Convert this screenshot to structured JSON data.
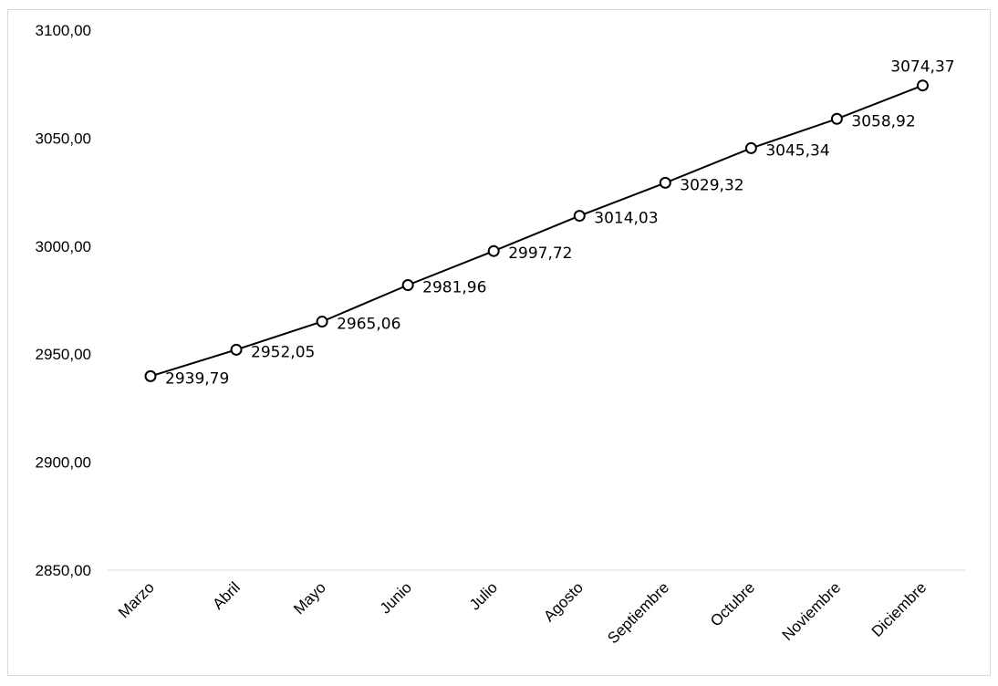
{
  "chart_data": {
    "type": "line",
    "title": "",
    "xlabel": "",
    "ylabel": "",
    "categories": [
      "Marzo",
      "Abril",
      "Mayo",
      "Junio",
      "Julio",
      "Agosto",
      "Septiembre",
      "Octubre",
      "Noviembre",
      "Diciembre"
    ],
    "series": [
      {
        "values": [
          2939.79,
          2952.05,
          2965.06,
          2981.96,
          2997.72,
          3014.03,
          3029.32,
          3045.34,
          3058.92,
          3074.37
        ],
        "data_labels": [
          "2939,79",
          "2952,05",
          "2965,06",
          "2981,96",
          "2997,72",
          "3014,03",
          "3029,32",
          "3045,34",
          "3058,92",
          "3074,37"
        ],
        "color": "#000000",
        "marker": "hollow-circle"
      }
    ],
    "ylim": [
      2850,
      3100
    ],
    "y_ticks": [
      2850,
      2900,
      2950,
      3000,
      3050,
      3100
    ],
    "y_tick_labels": [
      "2850,00",
      "2900,00",
      "2950,00",
      "3000,00",
      "3050,00",
      "3100,00"
    ],
    "grid": false,
    "legend": "none",
    "colors": {
      "line": "#000000",
      "axis": "#d9d9d9",
      "border": "#d9d9d9",
      "background": "#ffffff"
    }
  }
}
